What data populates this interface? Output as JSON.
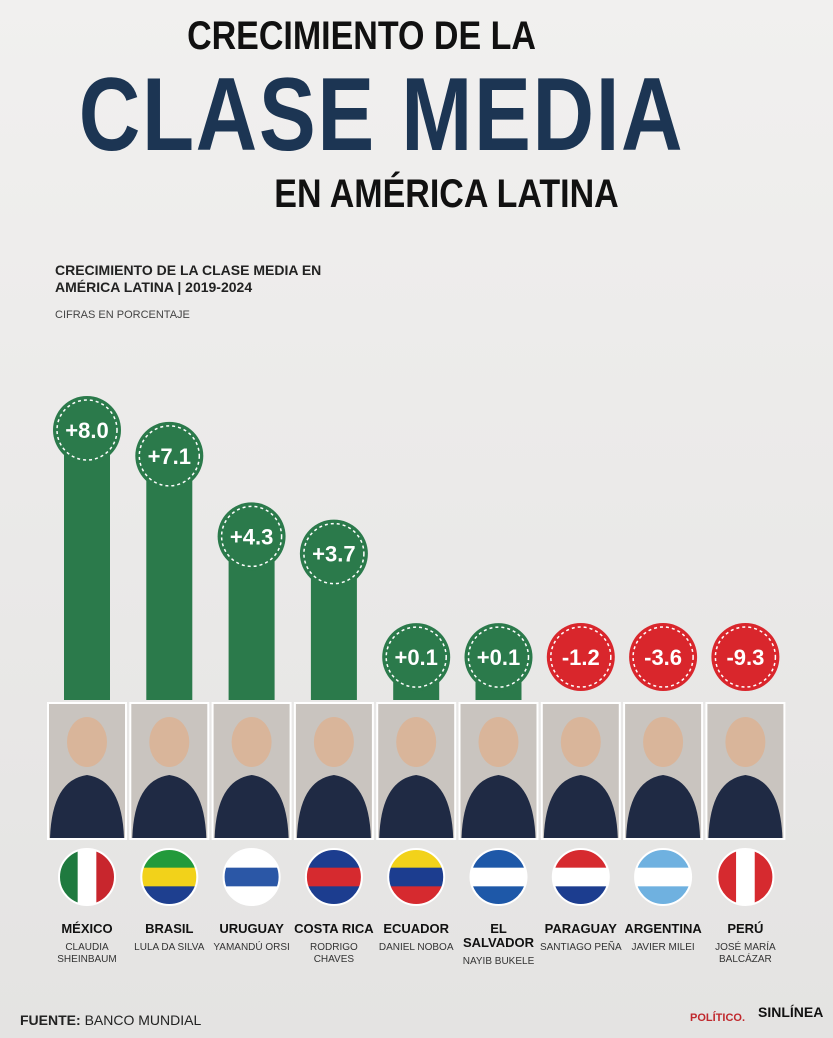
{
  "header": {
    "line1": "CRECIMIENTO DE LA",
    "line2": "CLASE MEDIA",
    "line3": "EN AMÉRICA LATINA"
  },
  "chart_data": {
    "type": "bar",
    "title": "CRECIMIENTO DE LA CLASE MEDIA EN AMÉRICA LATINA | 2019-2024",
    "subtitle": "CIFRAS EN PORCENTAJE",
    "categories": [
      "MÉXICO",
      "BRASIL",
      "URUGUAY",
      "COSTA RICA",
      "ECUADOR",
      "EL SALVADOR",
      "PARAGUAY",
      "ARGENTINA",
      "PERÚ"
    ],
    "leaders": [
      "CLAUDIA SHEINBAUM",
      "LULA DA SILVA",
      "YAMANDÚ ORSI",
      "RODRIGO CHAVES",
      "DANIEL NOBOA",
      "NAYIB BUKELE",
      "SANTIAGO PEÑA",
      "JAVIER MILEI",
      "JOSÉ MARÍA BALCÁZAR"
    ],
    "values": [
      8.0,
      7.1,
      4.3,
      3.7,
      0.1,
      0.1,
      -1.2,
      -3.6,
      -9.3
    ],
    "value_labels": [
      "+8.0",
      "+7.1",
      "+4.3",
      "+3.7",
      "+0.1",
      "+0.1",
      "-1.2",
      "-3.6",
      "-9.3"
    ],
    "colors": {
      "positive": "#2b7a4b",
      "negative": "#d9262c"
    }
  },
  "footer": {
    "source_label": "FUENTE:",
    "source": "BANCO MUNDIAL",
    "logo1": "POLÍTICO.",
    "logo2": "SINLÍNEA"
  }
}
